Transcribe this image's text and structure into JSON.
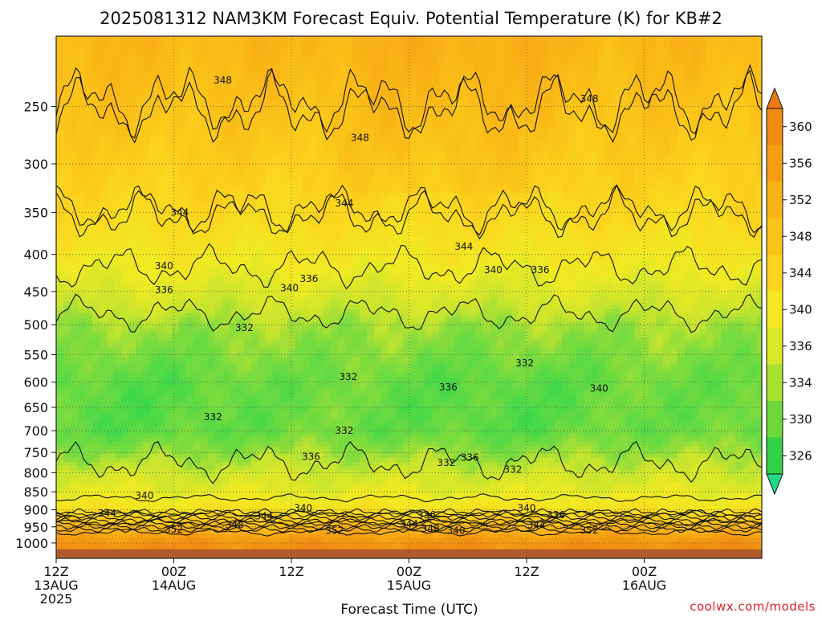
{
  "chart_data": {
    "type": "heatmap",
    "title": "2025081312 NAM3KM Forecast Equiv. Potential Temperature (K) for KB#2",
    "xlabel": "Forecast Time (UTC)",
    "ylabel": "",
    "x_range_hours": [
      0,
      36
    ],
    "x_ticks": [
      {
        "hour": 0,
        "line1": "12Z",
        "line2": "13AUG",
        "line3": "2025"
      },
      {
        "hour": 6,
        "line1": "00Z",
        "line2": "14AUG",
        "line3": ""
      },
      {
        "hour": 12,
        "line1": "12Z",
        "line2": "",
        "line3": ""
      },
      {
        "hour": 18,
        "line1": "00Z",
        "line2": "15AUG",
        "line3": ""
      },
      {
        "hour": 24,
        "line1": "12Z",
        "line2": "",
        "line3": ""
      },
      {
        "hour": 30,
        "line1": "00Z",
        "line2": "16AUG",
        "line3": ""
      }
    ],
    "y_scale": "log",
    "y_range_hpa": [
      1050,
      200
    ],
    "y_ticks": [
      "250",
      "300",
      "350",
      "400",
      "450",
      "500",
      "550",
      "600",
      "650",
      "700",
      "750",
      "800",
      "850",
      "900",
      "950",
      "1000"
    ],
    "grid": true,
    "colorbar": {
      "ticks": [
        "360",
        "356",
        "352",
        "348",
        "344",
        "340",
        "336",
        "334",
        "330",
        "326"
      ],
      "colors": [
        "#f08a10",
        "#f59e12",
        "#f8b414",
        "#fac318",
        "#fbd51e",
        "#f5e822",
        "#d8e828",
        "#a8e030",
        "#6cd83a",
        "#30d048",
        "#20d888"
      ],
      "extend": "both"
    },
    "isotherm_bands": [
      {
        "pressure_hpa": 200,
        "theta": 350
      },
      {
        "pressure_hpa": 250,
        "theta": 348
      },
      {
        "pressure_hpa": 300,
        "theta": 346
      },
      {
        "pressure_hpa": 350,
        "theta": 344
      },
      {
        "pressure_hpa": 400,
        "theta": 341
      },
      {
        "pressure_hpa": 450,
        "theta": 338
      },
      {
        "pressure_hpa": 500,
        "theta": 335
      },
      {
        "pressure_hpa": 600,
        "theta": 333
      },
      {
        "pressure_hpa": 700,
        "theta": 333
      },
      {
        "pressure_hpa": 800,
        "theta": 337
      },
      {
        "pressure_hpa": 850,
        "theta": 339
      },
      {
        "pressure_hpa": 900,
        "theta": 342
      },
      {
        "pressure_hpa": 950,
        "theta": 350
      },
      {
        "pressure_hpa": 1000,
        "theta": 356
      }
    ],
    "contour_labels": [
      {
        "hour": 8.5,
        "pressure_hpa": 230,
        "text": "348"
      },
      {
        "hour": 27.2,
        "pressure_hpa": 244,
        "text": "348"
      },
      {
        "hour": 15.5,
        "pressure_hpa": 276,
        "text": "348"
      },
      {
        "hour": 6.3,
        "pressure_hpa": 350,
        "text": "344"
      },
      {
        "hour": 14.7,
        "pressure_hpa": 340,
        "text": "344"
      },
      {
        "hour": 20.8,
        "pressure_hpa": 390,
        "text": "344"
      },
      {
        "hour": 5.5,
        "pressure_hpa": 415,
        "text": "340"
      },
      {
        "hour": 11.9,
        "pressure_hpa": 445,
        "text": "340"
      },
      {
        "hour": 22.3,
        "pressure_hpa": 420,
        "text": "340"
      },
      {
        "hour": 24.7,
        "pressure_hpa": 420,
        "text": "336"
      },
      {
        "hour": 5.5,
        "pressure_hpa": 448,
        "text": "336"
      },
      {
        "hour": 12.9,
        "pressure_hpa": 432,
        "text": "336"
      },
      {
        "hour": 9.6,
        "pressure_hpa": 505,
        "text": "332"
      },
      {
        "hour": 14.9,
        "pressure_hpa": 590,
        "text": "332"
      },
      {
        "hour": 23.9,
        "pressure_hpa": 565,
        "text": "332"
      },
      {
        "hour": 8.0,
        "pressure_hpa": 670,
        "text": "332"
      },
      {
        "hour": 14.7,
        "pressure_hpa": 700,
        "text": "332"
      },
      {
        "hour": 20.0,
        "pressure_hpa": 610,
        "text": "336"
      },
      {
        "hour": 19.9,
        "pressure_hpa": 775,
        "text": "332"
      },
      {
        "hour": 21.1,
        "pressure_hpa": 762,
        "text": "336"
      },
      {
        "hour": 13.0,
        "pressure_hpa": 760,
        "text": "336"
      },
      {
        "hour": 23.3,
        "pressure_hpa": 792,
        "text": "332"
      },
      {
        "hour": 27.7,
        "pressure_hpa": 612,
        "text": "340"
      },
      {
        "hour": 4.5,
        "pressure_hpa": 860,
        "text": "340"
      },
      {
        "hour": 2.6,
        "pressure_hpa": 910,
        "text": "344"
      },
      {
        "hour": 12.6,
        "pressure_hpa": 895,
        "text": "340"
      },
      {
        "hour": 10.6,
        "pressure_hpa": 918,
        "text": "344"
      },
      {
        "hour": 6.0,
        "pressure_hpa": 958,
        "text": "352"
      },
      {
        "hour": 9.1,
        "pressure_hpa": 945,
        "text": "348"
      },
      {
        "hour": 14.2,
        "pressure_hpa": 962,
        "text": "352"
      },
      {
        "hour": 18.0,
        "pressure_hpa": 942,
        "text": "344"
      },
      {
        "hour": 18.9,
        "pressure_hpa": 915,
        "text": "336"
      },
      {
        "hour": 19.1,
        "pressure_hpa": 955,
        "text": "348"
      },
      {
        "hour": 20.4,
        "pressure_hpa": 962,
        "text": "340"
      },
      {
        "hour": 24.0,
        "pressure_hpa": 895,
        "text": "340"
      },
      {
        "hour": 24.5,
        "pressure_hpa": 945,
        "text": "344"
      },
      {
        "hour": 25.5,
        "pressure_hpa": 915,
        "text": "336"
      },
      {
        "hour": 27.2,
        "pressure_hpa": 960,
        "text": "352"
      }
    ]
  },
  "credit": "coolwx.com/models"
}
